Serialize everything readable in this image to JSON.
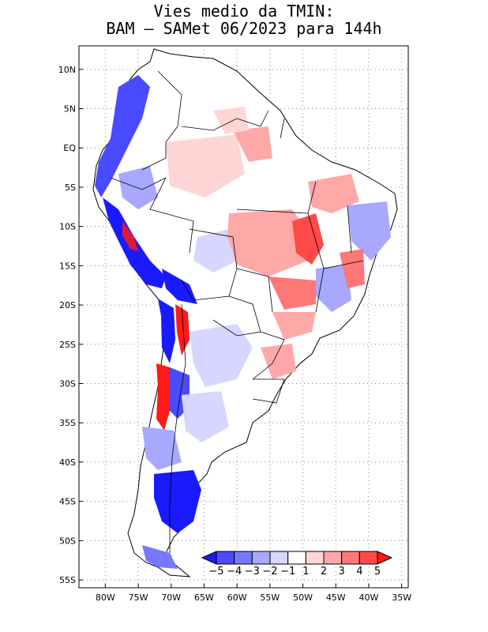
{
  "title": {
    "line1": "Vies medio da TMIN:",
    "line2": "BAM – SAMet 06/2023  para 144h"
  },
  "map": {
    "region": "South America",
    "variable": "TMIN bias",
    "lat_range": [
      -56,
      13
    ],
    "lon_range": [
      -84,
      -34
    ],
    "lat_labels": [
      "10N",
      "5N",
      "EQ",
      "5S",
      "10S",
      "15S",
      "20S",
      "25S",
      "30S",
      "35S",
      "40S",
      "45S",
      "50S",
      "55S"
    ],
    "lat_values": [
      10,
      5,
      0,
      -5,
      -10,
      -15,
      -20,
      -25,
      -30,
      -35,
      -40,
      -45,
      -50,
      -55
    ],
    "lon_labels": [
      "80W",
      "75W",
      "70W",
      "65W",
      "60W",
      "55W",
      "50W",
      "45W",
      "40W",
      "35W"
    ],
    "lon_values": [
      -80,
      -75,
      -70,
      -65,
      -60,
      -55,
      -50,
      -45,
      -40,
      -35
    ]
  },
  "colorbar": {
    "labels": [
      "−5",
      "−4",
      "−3",
      "−2",
      "−1",
      "1",
      "2",
      "3",
      "4",
      "5"
    ],
    "colors": [
      "#1a1aff",
      "#4a4aff",
      "#7878ff",
      "#a8a8ff",
      "#d6d6ff",
      "#ffffff",
      "#ffd6d6",
      "#ffa8a8",
      "#ff7878",
      "#ff4a4a",
      "#ff1a1a"
    ]
  }
}
